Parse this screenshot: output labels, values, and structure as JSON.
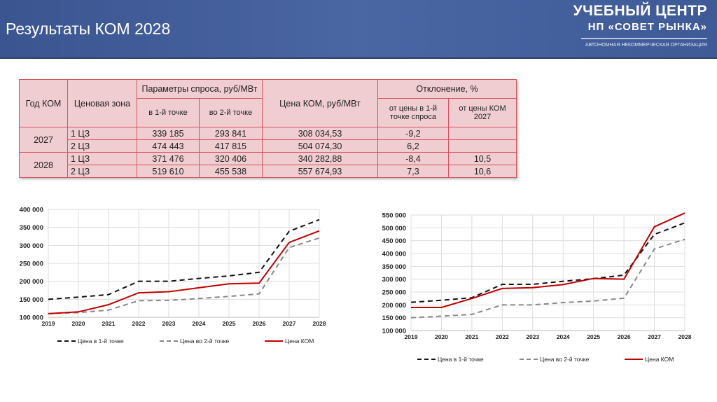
{
  "header": {
    "title": "Результаты КОМ 2028",
    "brand_line1": "УЧЕБНЫЙ ЦЕНТР",
    "brand_line2": "НП «СОВЕТ РЫНКА»",
    "brand_line3": "АВТОНОМНАЯ НЕКОММЕРЧЕСКАЯ ОРГАНИЗАЦИЯ"
  },
  "table": {
    "h_year": "Год КОМ",
    "h_zone": "Ценовая зона",
    "h_params": "Параметры спроса, руб/МВт",
    "h_p1": "в 1-й точке",
    "h_p2": "во 2-й точке",
    "h_price": "Цена КОМ, руб/МВт",
    "h_dev": "Отклонение, %",
    "h_dev1": "от цены в 1-й точке спроса",
    "h_dev2": "от цены КОМ 2027",
    "rows": [
      {
        "year": "2027",
        "zone": "1 ЦЗ",
        "p1": "339 185",
        "p2": "293 841",
        "price": "308 034,53",
        "dev1": "-9,2",
        "dev2": ""
      },
      {
        "year": "",
        "zone": "2 ЦЗ",
        "p1": "474 443",
        "p2": "417 815",
        "price": "504 074,30",
        "dev1": "6,2",
        "dev2": ""
      },
      {
        "year": "2028",
        "zone": "1 ЦЗ",
        "p1": "371 476",
        "p2": "320 406",
        "price": "340 282,88",
        "dev1": "-8,4",
        "dev2": "10,5"
      },
      {
        "year": "",
        "zone": "2 ЦЗ",
        "p1": "519 610",
        "p2": "455 538",
        "price": "557 674,93",
        "dev1": "7,3",
        "dev2": "10,6"
      }
    ]
  },
  "chart_data": [
    {
      "type": "line",
      "x": [
        "2019",
        "2020",
        "2021",
        "2022",
        "2023",
        "2024",
        "2025",
        "2026",
        "2027",
        "2028"
      ],
      "ylim": [
        100000,
        400000
      ],
      "yticks": [
        "100 000",
        "150 000",
        "200 000",
        "250 000",
        "300 000",
        "350 000",
        "400 000"
      ],
      "grid": true,
      "legend": "bottom",
      "series": [
        {
          "name": "Цена в 1-й точке",
          "color": "#111111",
          "dash": true,
          "values": [
            150000,
            156000,
            163000,
            200000,
            200000,
            208000,
            215000,
            225000,
            339185,
            371476
          ]
        },
        {
          "name": "Цена во 2-й точке",
          "color": "#888888",
          "dash": true,
          "values": [
            110000,
            113000,
            120000,
            146000,
            147000,
            152000,
            158000,
            165000,
            293841,
            320406
          ]
        },
        {
          "name": "Цена КОМ",
          "color": "#c00000",
          "dash": false,
          "values": [
            110000,
            115000,
            135000,
            168000,
            171000,
            182000,
            193000,
            195000,
            308035,
            340283
          ]
        }
      ]
    },
    {
      "type": "line",
      "x": [
        "2019",
        "2020",
        "2021",
        "2022",
        "2023",
        "2024",
        "2025",
        "2026",
        "2027",
        "2028"
      ],
      "ylim": [
        100000,
        550000
      ],
      "yticks": [
        "100 000",
        "150 000",
        "200 000",
        "250 000",
        "300 000",
        "350 000",
        "400 000",
        "450 000",
        "500 000",
        "550 000"
      ],
      "grid": true,
      "legend": "bottom",
      "series": [
        {
          "name": "Цена в 1-й точке",
          "color": "#111111",
          "dash": true,
          "values": [
            210000,
            218000,
            228000,
            280000,
            280000,
            292000,
            302000,
            316000,
            474443,
            519610
          ]
        },
        {
          "name": "Цена во 2-й точке",
          "color": "#888888",
          "dash": true,
          "values": [
            150000,
            156000,
            163000,
            200000,
            200000,
            209000,
            215000,
            226000,
            417815,
            455538
          ]
        },
        {
          "name": "Цена КОМ",
          "color": "#c00000",
          "dash": false,
          "values": [
            190000,
            190000,
            225000,
            264000,
            267000,
            279000,
            303000,
            300000,
            504074,
            557675
          ]
        }
      ]
    }
  ]
}
